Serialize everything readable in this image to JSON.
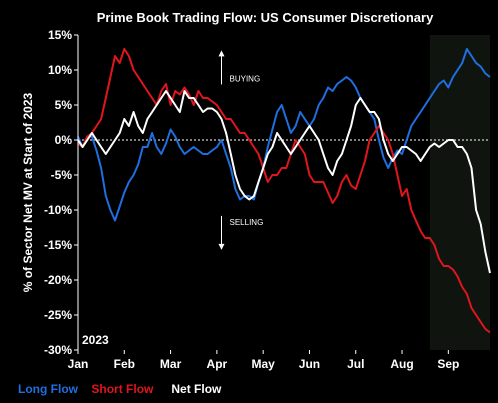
{
  "chart_data": {
    "type": "line",
    "title": "Prime Book Trading Flow: US Consumer Discretionary",
    "xlabel": "",
    "ylabel": "% of Sector Net MV at Start of 2023",
    "ylim": [
      -30,
      15
    ],
    "yticks": [
      15,
      10,
      5,
      0,
      -5,
      -10,
      -15,
      -20,
      -25,
      -30
    ],
    "ytick_labels": [
      "15%",
      "10%",
      "5%",
      "0%",
      "-5%",
      "-10%",
      "-15%",
      "-20%",
      "-25%",
      "-30%"
    ],
    "x_unit": "months since Jan 1, 2023",
    "xlim": [
      0,
      8.9
    ],
    "xticks": [
      0,
      1,
      2,
      3,
      4,
      5,
      6,
      7,
      8
    ],
    "xtick_labels": [
      "Jan",
      "Feb",
      "Mar",
      "Apr",
      "May",
      "Jun",
      "Jul",
      "Aug",
      "Sep"
    ],
    "year_label": "2023",
    "shaded_region": {
      "x_from": 7.6,
      "x_to": 8.9,
      "color": "#0f140f"
    },
    "zero_line": true,
    "grid": false,
    "legend_position": "bottom-left",
    "annotations": [
      {
        "text": "BUYING",
        "direction": "up",
        "x": 3.1,
        "y": 8.8
      },
      {
        "text": "SELLING",
        "direction": "down",
        "x": 3.1,
        "y": -11.7
      }
    ],
    "series": [
      {
        "name": "Long Flow",
        "color": "#1f6fe0",
        "x": [
          0,
          0.1,
          0.2,
          0.3,
          0.4,
          0.5,
          0.6,
          0.7,
          0.8,
          0.9,
          1.0,
          1.1,
          1.2,
          1.3,
          1.4,
          1.5,
          1.6,
          1.7,
          1.8,
          1.9,
          2.0,
          2.1,
          2.2,
          2.3,
          2.4,
          2.5,
          2.6,
          2.7,
          2.8,
          2.9,
          3.0,
          3.1,
          3.2,
          3.3,
          3.4,
          3.5,
          3.6,
          3.7,
          3.8,
          3.9,
          4.0,
          4.1,
          4.2,
          4.3,
          4.4,
          4.5,
          4.6,
          4.7,
          4.8,
          4.9,
          5.0,
          5.1,
          5.2,
          5.3,
          5.4,
          5.5,
          5.6,
          5.7,
          5.8,
          5.9,
          6.0,
          6.1,
          6.2,
          6.3,
          6.4,
          6.5,
          6.6,
          6.7,
          6.8,
          6.9,
          7.0,
          7.1,
          7.2,
          7.3,
          7.4,
          7.5,
          7.6,
          7.7,
          7.8,
          7.9,
          8.0,
          8.1,
          8.2,
          8.3,
          8.4,
          8.5,
          8.6,
          8.7,
          8.8,
          8.9
        ],
        "values": [
          0.5,
          -1,
          0.5,
          0.5,
          -1.5,
          -4,
          -8,
          -10,
          -11.5,
          -9.5,
          -7.5,
          -6,
          -5,
          -3.5,
          -1,
          -1,
          1,
          -1,
          -2,
          -0.5,
          1.5,
          0.5,
          -1,
          -2,
          -1.5,
          -1,
          -1.5,
          -2,
          -2,
          -1.5,
          -1,
          0,
          -2,
          -4,
          -7,
          -8.5,
          -8,
          -8,
          -8.5,
          -6,
          -4,
          -1,
          1.5,
          4,
          5,
          3,
          1,
          2,
          4,
          3,
          2,
          3,
          5,
          6,
          7.5,
          7,
          8,
          8.5,
          9,
          8.5,
          7.5,
          6,
          5,
          4,
          3,
          0,
          -2.5,
          -4,
          -2.5,
          -1.5,
          -2,
          0,
          2,
          3,
          4,
          5,
          6,
          7,
          8,
          8.5,
          7.5,
          9,
          10,
          11,
          13,
          12,
          11,
          10.5,
          9.5,
          9
        ]
      },
      {
        "name": "Short Flow",
        "color": "#e0161c",
        "x": [
          0,
          0.1,
          0.2,
          0.3,
          0.4,
          0.5,
          0.6,
          0.7,
          0.8,
          0.9,
          1.0,
          1.1,
          1.2,
          1.3,
          1.4,
          1.5,
          1.6,
          1.7,
          1.8,
          1.9,
          2.0,
          2.1,
          2.2,
          2.3,
          2.4,
          2.5,
          2.6,
          2.7,
          2.8,
          2.9,
          3.0,
          3.1,
          3.2,
          3.3,
          3.4,
          3.5,
          3.6,
          3.7,
          3.8,
          3.9,
          4.0,
          4.1,
          4.2,
          4.3,
          4.4,
          4.5,
          4.6,
          4.7,
          4.8,
          4.9,
          5.0,
          5.1,
          5.2,
          5.3,
          5.4,
          5.5,
          5.6,
          5.7,
          5.8,
          5.9,
          6.0,
          6.1,
          6.2,
          6.3,
          6.4,
          6.5,
          6.6,
          6.7,
          6.8,
          6.9,
          7.0,
          7.1,
          7.2,
          7.3,
          7.4,
          7.5,
          7.6,
          7.7,
          7.8,
          7.9,
          8.0,
          8.1,
          8.2,
          8.3,
          8.4,
          8.5,
          8.6,
          8.7,
          8.8,
          8.9
        ],
        "values": [
          -0.5,
          -1,
          0.5,
          1,
          2,
          3,
          6,
          9,
          12,
          11,
          13,
          12,
          10,
          9,
          8,
          7,
          6,
          5,
          7,
          8,
          5,
          7,
          6.5,
          7.5,
          6.5,
          5,
          7,
          6,
          6,
          5.5,
          5,
          4,
          3,
          3,
          2,
          1,
          1,
          0,
          -1,
          -2,
          -4,
          -6,
          -5,
          -5,
          -4,
          -4,
          -2,
          0,
          -1,
          -2,
          -5,
          -6,
          -6,
          -6,
          -7.5,
          -9,
          -8,
          -6,
          -5,
          -6.5,
          -7,
          -5,
          -3,
          0,
          1,
          2,
          1,
          0,
          -2,
          -5,
          -8,
          -7,
          -10,
          -11.5,
          -13,
          -14,
          -14,
          -15,
          -17,
          -18,
          -18,
          -18.5,
          -19.5,
          -21,
          -22,
          -24,
          -25,
          -26,
          -27,
          -27.5
        ]
      },
      {
        "name": "Net Flow",
        "color": "#ffffff",
        "x": [
          0,
          0.1,
          0.2,
          0.3,
          0.4,
          0.5,
          0.6,
          0.7,
          0.8,
          0.9,
          1.0,
          1.1,
          1.2,
          1.3,
          1.4,
          1.5,
          1.6,
          1.7,
          1.8,
          1.9,
          2.0,
          2.1,
          2.2,
          2.3,
          2.4,
          2.5,
          2.6,
          2.7,
          2.8,
          2.9,
          3.0,
          3.1,
          3.2,
          3.3,
          3.4,
          3.5,
          3.6,
          3.7,
          3.8,
          3.9,
          4.0,
          4.1,
          4.2,
          4.3,
          4.4,
          4.5,
          4.6,
          4.7,
          4.8,
          4.9,
          5.0,
          5.1,
          5.2,
          5.3,
          5.4,
          5.5,
          5.6,
          5.7,
          5.8,
          5.9,
          6.0,
          6.1,
          6.2,
          6.3,
          6.4,
          6.5,
          6.6,
          6.7,
          6.8,
          6.9,
          7.0,
          7.1,
          7.2,
          7.3,
          7.4,
          7.5,
          7.6,
          7.7,
          7.8,
          7.9,
          8.0,
          8.1,
          8.2,
          8.3,
          8.4,
          8.5,
          8.6,
          8.7,
          8.8,
          8.9
        ],
        "values": [
          0,
          -1,
          0,
          1,
          0,
          -1,
          -2,
          -1,
          0,
          1,
          3,
          2,
          4,
          2,
          1,
          3,
          4,
          5,
          6,
          7,
          6,
          5,
          4,
          7,
          6,
          6,
          5,
          4,
          4.5,
          4.5,
          4,
          3,
          1,
          -2,
          -5,
          -7,
          -8,
          -8.5,
          -8,
          -6,
          -4,
          -2,
          -1,
          1,
          0,
          -1,
          -2,
          -1,
          0,
          1,
          2,
          1,
          0,
          -2,
          -4,
          -5,
          -3,
          -2,
          0,
          2,
          5,
          6,
          5,
          4,
          4,
          3,
          0,
          -2,
          -3,
          -2,
          -1,
          -1,
          -1.5,
          -2,
          -3,
          -2,
          -1,
          -0.5,
          -1,
          -0.5,
          0,
          0,
          -1,
          -1,
          -2,
          -4,
          -10,
          -12,
          -16,
          -19
        ]
      }
    ]
  }
}
